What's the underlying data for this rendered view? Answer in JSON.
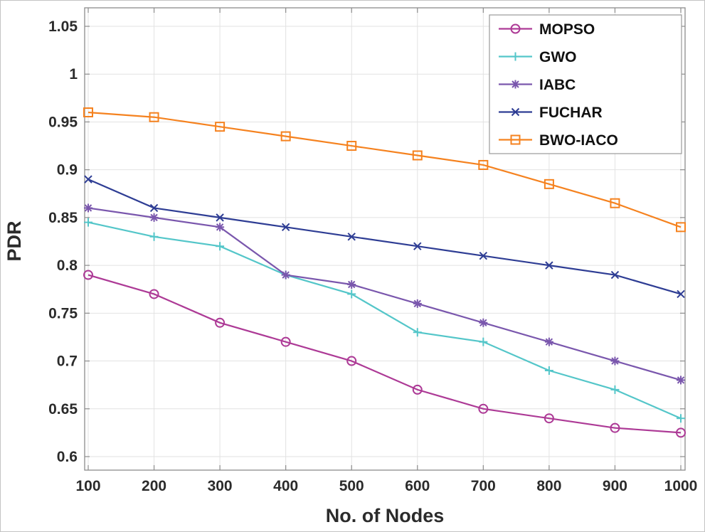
{
  "chart_data": {
    "type": "line",
    "title": "",
    "xlabel": "No. of Nodes",
    "ylabel": "PDR",
    "x": [
      100,
      200,
      300,
      400,
      500,
      600,
      700,
      800,
      900,
      1000
    ],
    "xtick_labels": [
      "100",
      "200",
      "300",
      "400",
      "500",
      "600",
      "700",
      "800",
      "900",
      "1000"
    ],
    "yticks": [
      0.6,
      0.65,
      0.7,
      0.75,
      0.8,
      0.85,
      0.9,
      0.95,
      1.0,
      1.05
    ],
    "ytick_labels": [
      "0.6",
      "0.65",
      "0.7",
      "0.75",
      "0.8",
      "0.85",
      "0.9",
      "0.95",
      "1",
      "1.05"
    ],
    "xlim": [
      100,
      1000
    ],
    "ylim": [
      0.6,
      1.05
    ],
    "grid": true,
    "legend_position": "top-right",
    "axes_color": "#8c8c8c",
    "grid_color": "#e2e2e2",
    "series": [
      {
        "name": "MOPSO",
        "color": "#ad3a96",
        "marker": "circle",
        "values": [
          0.79,
          0.77,
          0.74,
          0.72,
          0.7,
          0.67,
          0.65,
          0.64,
          0.63,
          0.625
        ]
      },
      {
        "name": "GWO",
        "color": "#54c6c9",
        "marker": "plus",
        "values": [
          0.845,
          0.83,
          0.82,
          0.79,
          0.77,
          0.73,
          0.72,
          0.69,
          0.67,
          0.64
        ]
      },
      {
        "name": "IABC",
        "color": "#7a57ad",
        "marker": "asterisk",
        "values": [
          0.86,
          0.85,
          0.84,
          0.79,
          0.78,
          0.76,
          0.74,
          0.72,
          0.7,
          0.68
        ]
      },
      {
        "name": "FUCHAR",
        "color": "#2e3d94",
        "marker": "x",
        "values": [
          0.89,
          0.86,
          0.85,
          0.84,
          0.83,
          0.82,
          0.81,
          0.8,
          0.79,
          0.77
        ]
      },
      {
        "name": "BWO-IACO",
        "color": "#f5821f",
        "marker": "square",
        "values": [
          0.96,
          0.955,
          0.945,
          0.935,
          0.925,
          0.915,
          0.905,
          0.885,
          0.865,
          0.84
        ]
      }
    ]
  }
}
